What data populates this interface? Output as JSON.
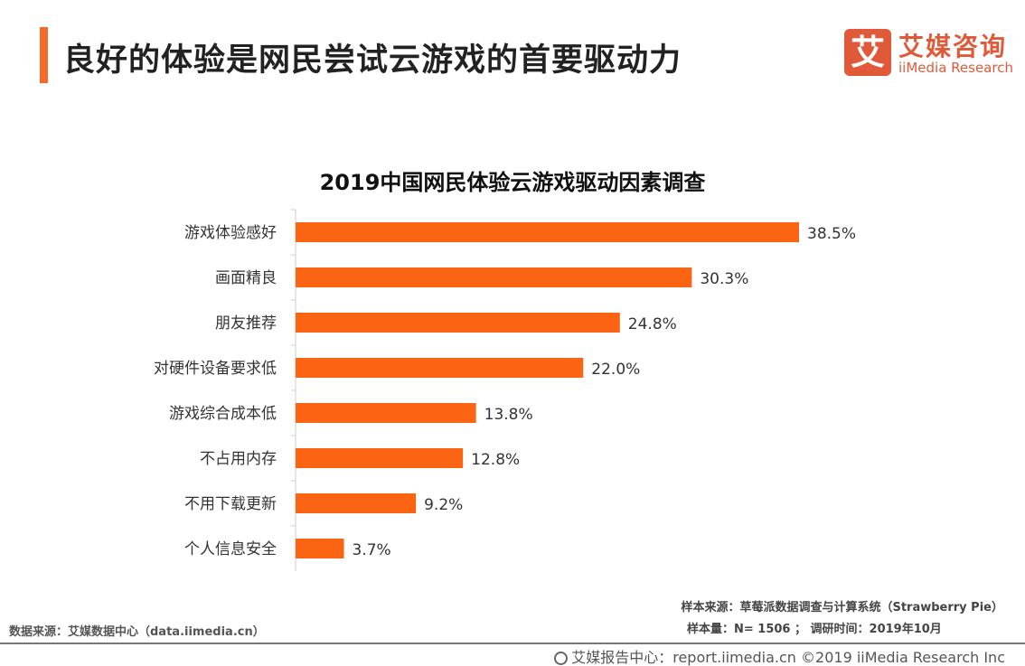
{
  "header": {
    "title": "良好的体验是网民尝试云游戏的首要驱动力",
    "accent_color": "#f26b2a"
  },
  "logo": {
    "mark": "艾",
    "name_cn": "艾媒咨询",
    "name_en": "iiMedia Research",
    "color": "#e05a3a"
  },
  "chart_data": {
    "type": "bar",
    "orientation": "horizontal",
    "title": "2019中国网民体验云游戏驱动因素调查",
    "categories": [
      "游戏体验感好",
      "画面精良",
      "朋友推荐",
      "对硬件设备要求低",
      "游戏综合成本低",
      "不占用内存",
      "不用下载更新",
      "个人信息安全"
    ],
    "values": [
      38.5,
      30.3,
      24.8,
      22.0,
      13.8,
      12.8,
      9.2,
      3.7
    ],
    "labels": [
      "38.5%",
      "30.3%",
      "24.8%",
      "22.0%",
      "13.8%",
      "12.8%",
      "9.2%",
      "3.7%"
    ],
    "unit": "%",
    "bar_color": "#fa6412",
    "xlim": [
      0,
      38.5
    ],
    "grid": false
  },
  "footer": {
    "data_source": "数据来源：艾媒数据中心（data.iimedia.cn）",
    "sample_source": "样本来源：草莓派数据调查与计算系统（Strawberry Pie）",
    "sample_size": "样本量：N= 1506 ； 调研时间：2019年10月",
    "copyright": "艾媒报告中心：report.iimedia.cn ©2019  iiMedia Research  Inc",
    "copyright_icon": "globe-icon"
  }
}
